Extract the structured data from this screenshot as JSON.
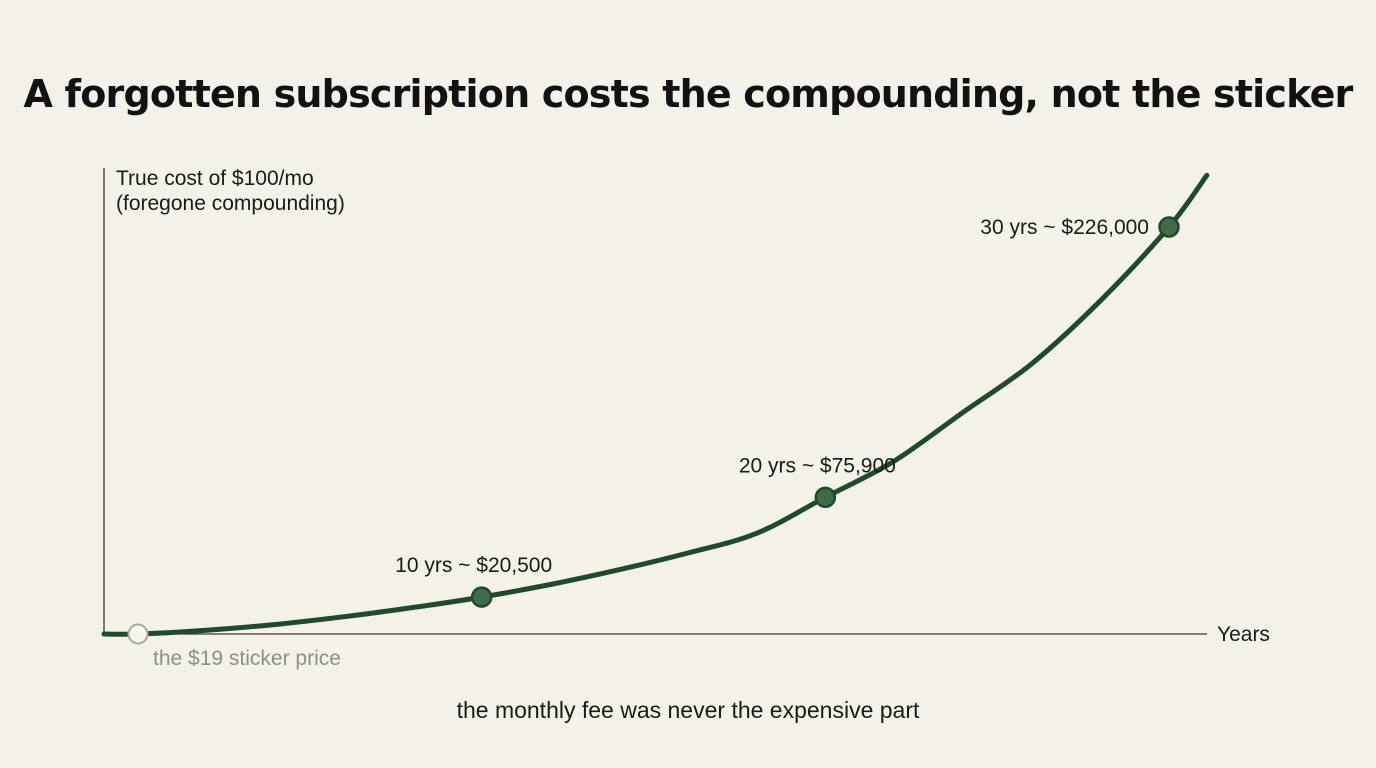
{
  "chart_data": {
    "type": "line",
    "title": "A forgotten subscription costs the compounding, not the sticker",
    "ylabel_lines": [
      "True cost of $100/mo",
      "(foregone compounding)"
    ],
    "xlabel": "Years",
    "x_range": [
      0,
      30
    ],
    "y_range": [
      0,
      226000
    ],
    "grid": false,
    "series": [
      {
        "x": [
          0,
          2,
          4,
          6,
          8,
          10,
          12,
          14,
          16,
          18,
          20,
          22,
          24,
          26,
          28,
          30
        ],
        "y": [
          0,
          2100,
          5300,
          9600,
          14700,
          20500,
          27500,
          35700,
          45000,
          55900,
          75900,
          96000,
          123000,
          150000,
          185000,
          226000
        ]
      }
    ],
    "start_annotation": {
      "x": 0,
      "y": 0,
      "label": "the $19 sticker price"
    },
    "annotations": [
      {
        "x": 10,
        "y": 20500,
        "label": "10 yrs ~ $20,500"
      },
      {
        "x": 20,
        "y": 75900,
        "label": "20 yrs ~ $75,900"
      },
      {
        "x": 30,
        "y": 226000,
        "label": "30 yrs ~ $226,000"
      }
    ],
    "caption": "the monthly fee was never the expensive part",
    "colors": {
      "curve": "#1f4a2c",
      "marker": "#3f6b47",
      "axis": "#3a3a3a",
      "muted_text": "#8f8f88",
      "background": "#f4f1e9"
    }
  }
}
